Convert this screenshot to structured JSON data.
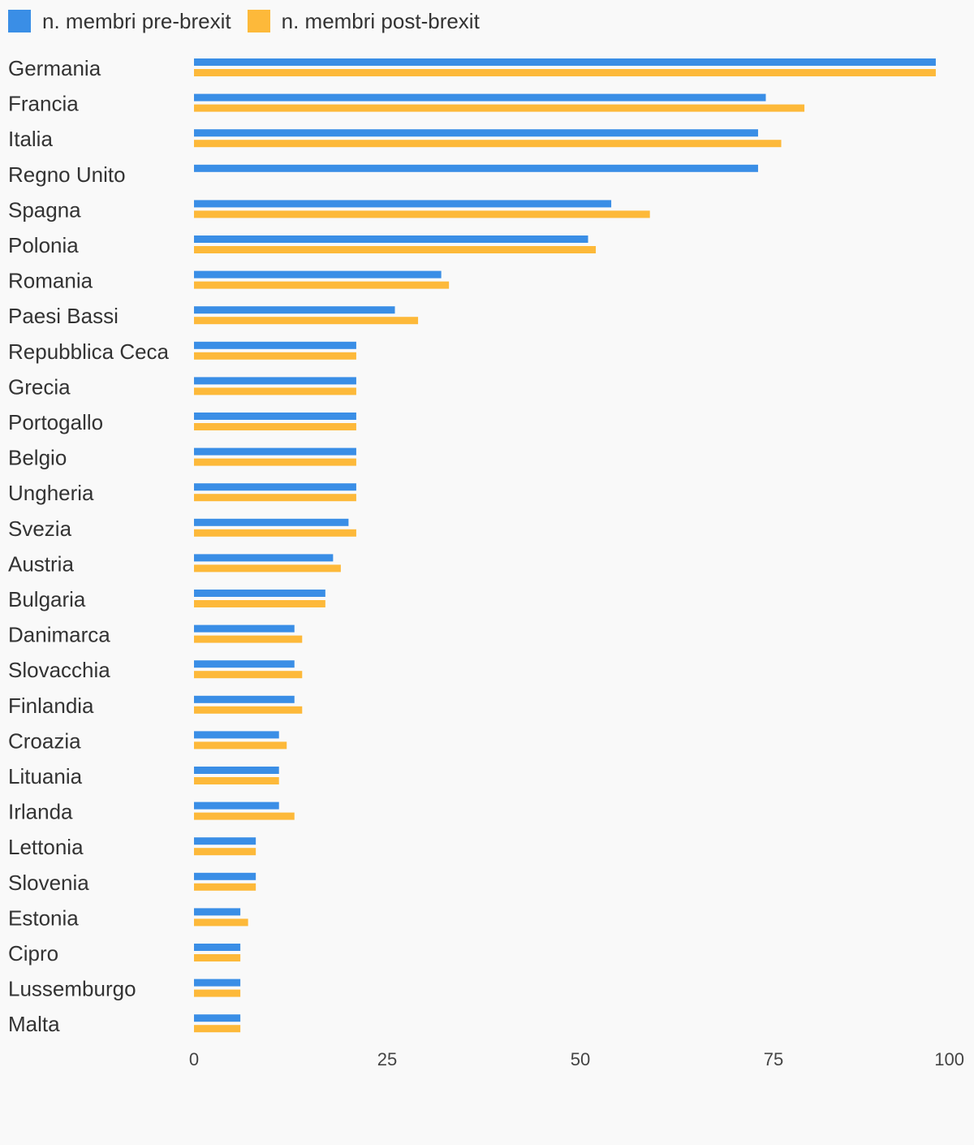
{
  "chart_data": {
    "type": "bar",
    "orientation": "horizontal",
    "categories": [
      "Germania",
      "Francia",
      "Italia",
      "Regno Unito",
      "Spagna",
      "Polonia",
      "Romania",
      "Paesi Bassi",
      "Repubblica Ceca",
      "Grecia",
      "Portogallo",
      "Belgio",
      "Ungheria",
      "Svezia",
      "Austria",
      "Bulgaria",
      "Danimarca",
      "Slovacchia",
      "Finlandia",
      "Croazia",
      "Lituania",
      "Irlanda",
      "Lettonia",
      "Slovenia",
      "Estonia",
      "Cipro",
      "Lussemburgo",
      "Malta"
    ],
    "series": [
      {
        "name": "n. membri pre-brexit",
        "color": "#3a8ee6",
        "values": [
          96,
          74,
          73,
          73,
          54,
          51,
          32,
          26,
          21,
          21,
          21,
          21,
          21,
          20,
          18,
          17,
          13,
          13,
          13,
          11,
          11,
          11,
          8,
          8,
          6,
          6,
          6,
          6
        ]
      },
      {
        "name": "n. membri post-brexit",
        "color": "#fdb93a",
        "values": [
          96,
          79,
          76,
          0,
          59,
          52,
          33,
          29,
          21,
          21,
          21,
          21,
          21,
          21,
          19,
          17,
          14,
          14,
          14,
          12,
          11,
          13,
          8,
          8,
          7,
          6,
          6,
          6
        ]
      }
    ],
    "xlim": [
      0,
      100
    ],
    "xticks": [
      "0",
      "25",
      "50",
      "75",
      "100"
    ],
    "title": "",
    "xlabel": "",
    "ylabel": "",
    "legend_position": "top-left",
    "grid": false
  }
}
